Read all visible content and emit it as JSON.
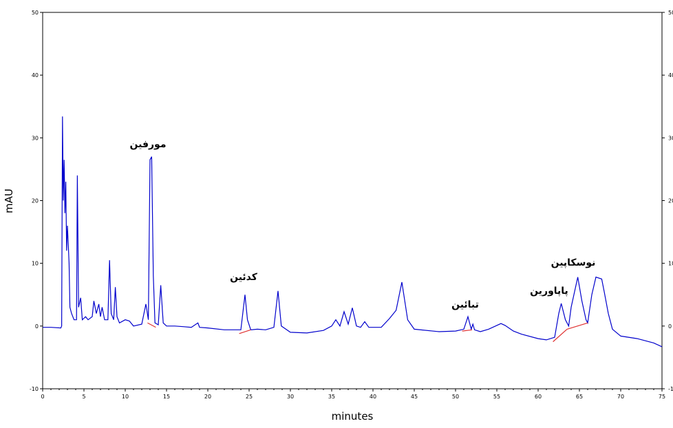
{
  "chart_data": {
    "type": "line",
    "x_label": "minutes",
    "y_label": "mAU",
    "color": "#0000cc",
    "xlim": [
      0,
      75
    ],
    "ylim": [
      -10,
      50
    ],
    "xticks": [
      0,
      5,
      10,
      15,
      20,
      25,
      30,
      35,
      40,
      45,
      50,
      55,
      60,
      65,
      70,
      75
    ],
    "yticks": [
      -10,
      0,
      10,
      20,
      30,
      40,
      50
    ],
    "x": [
      0,
      1,
      2.2,
      2.3,
      2.4,
      2.5,
      2.6,
      2.7,
      2.8,
      2.9,
      3.0,
      3.1,
      3.2,
      3.3,
      3.5,
      3.8,
      4.1,
      4.2,
      4.35,
      4.6,
      4.8,
      5.2,
      5.5,
      6.0,
      6.2,
      6.5,
      6.8,
      7.0,
      7.2,
      7.5,
      7.9,
      8.1,
      8.3,
      8.6,
      8.8,
      9.0,
      9.3,
      10,
      10.5,
      11,
      12,
      12.5,
      12.8,
      13.0,
      13.2,
      13.4,
      13.6,
      14,
      14.3,
      14.6,
      15,
      16,
      17,
      18,
      18.8,
      19,
      20,
      22,
      24,
      24.5,
      24.8,
      25.2,
      26,
      27,
      28,
      28.5,
      28.9,
      30,
      32,
      34,
      35,
      35.5,
      36,
      36.5,
      37,
      37.5,
      38,
      38.5,
      39,
      39.5,
      41,
      42,
      42.8,
      43.5,
      44.2,
      45,
      48,
      50,
      51,
      51.5,
      51.9,
      52.1,
      52.3,
      53,
      54,
      55.5,
      56,
      57,
      58,
      60,
      61,
      62,
      62.5,
      62.8,
      63.3,
      63.7,
      64,
      64.8,
      65.3,
      65.8,
      66,
      66.5,
      67,
      67.7,
      68,
      68.5,
      69,
      70,
      72,
      74,
      75
    ],
    "values": [
      -0.2,
      -0.2,
      -0.3,
      0,
      33.4,
      20,
      26.5,
      18,
      23,
      12,
      16,
      13,
      10,
      3,
      2,
      1,
      1,
      24,
      3,
      4.5,
      1,
      1.5,
      1,
      1.5,
      4,
      2,
      3.5,
      1.5,
      3,
      1,
      1,
      10.5,
      2,
      1,
      6.2,
      1.5,
      0.5,
      1,
      0.8,
      0,
      0.3,
      3.5,
      1,
      26.5,
      27,
      8,
      0.5,
      0.2,
      6.5,
      0.5,
      0,
      0,
      -0.1,
      -0.2,
      0.5,
      -0.2,
      -0.3,
      -0.6,
      -0.6,
      5,
      1,
      -0.6,
      -0.5,
      -0.6,
      -0.2,
      5.6,
      0,
      -1,
      -1.1,
      -0.7,
      0,
      1,
      0,
      2.3,
      0.3,
      2.9,
      0,
      -0.2,
      0.7,
      -0.2,
      -0.2,
      1.2,
      2.5,
      7,
      1,
      -0.5,
      -0.9,
      -0.8,
      -0.5,
      1.5,
      -0.5,
      0.3,
      -0.6,
      -0.9,
      -0.5,
      0.4,
      0.1,
      -0.8,
      -1.3,
      -2,
      -2.2,
      -1.8,
      2,
      3.6,
      1,
      0,
      3,
      7.8,
      4,
      1,
      0.5,
      5,
      7.8,
      7.5,
      5.5,
      2,
      -0.5,
      -1.6,
      -2,
      -2.7,
      -3.3
    ],
    "baseline_color": "#e03030",
    "baselines": [
      {
        "x": [
          12.7,
          13.7
        ],
        "y": [
          0.5,
          -0.2
        ]
      },
      {
        "x": [
          23.8,
          25.2
        ],
        "y": [
          -1.2,
          -0.6
        ]
      },
      {
        "x": [
          50.8,
          52.0
        ],
        "y": [
          -0.8,
          -0.6
        ]
      },
      {
        "x": [
          61.8,
          63.5
        ],
        "y": [
          -2.5,
          -0.5
        ]
      },
      {
        "x": [
          63.5,
          66.0
        ],
        "y": [
          -0.5,
          0.5
        ]
      }
    ],
    "annotations": [
      "مورفین",
      "کدئین",
      "تبائین",
      "پاپاورین",
      "نوسکاپین"
    ]
  }
}
